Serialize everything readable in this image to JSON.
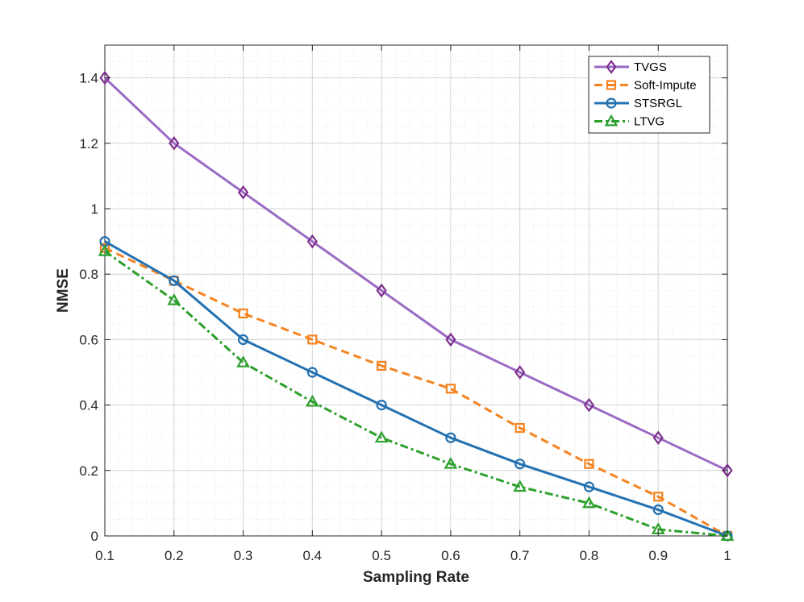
{
  "chart_data": {
    "type": "line",
    "title": "",
    "xlabel": "Sampling Rate",
    "ylabel": "NMSE",
    "x": [
      0.1,
      0.2,
      0.3,
      0.4,
      0.5,
      0.6,
      0.7,
      0.8,
      0.9,
      1
    ],
    "xlim": [
      0.1,
      1
    ],
    "ylim": [
      0,
      1.5
    ],
    "x_ticks": [
      "0.1",
      "0.2",
      "0.3",
      "0.4",
      "0.5",
      "0.6",
      "0.7",
      "0.8",
      "0.9",
      "1"
    ],
    "y_ticks": [
      "0",
      "0.2",
      "0.4",
      "0.6",
      "0.8",
      "1",
      "1.2",
      "1.4"
    ],
    "grid": true,
    "minor_grid": true,
    "legend_position": "top-right",
    "series": [
      {
        "name": "TVGS",
        "color": "#7E2F8E",
        "line_color": "#9B6BC4",
        "dash": "solid",
        "marker": "diamond",
        "values": [
          1.4,
          1.2,
          1.05,
          0.9,
          0.75,
          0.6,
          0.5,
          0.4,
          0.3,
          0.2
        ]
      },
      {
        "name": "Soft-Impute",
        "color": "#F5831F",
        "dash": "dashed",
        "marker": "square",
        "values": [
          0.88,
          0.78,
          0.68,
          0.6,
          0.52,
          0.45,
          0.33,
          0.22,
          0.12,
          0.0
        ]
      },
      {
        "name": "STSRGL",
        "color": "#2371B2",
        "dash": "solid",
        "marker": "circle",
        "values": [
          0.9,
          0.78,
          0.6,
          0.5,
          0.4,
          0.3,
          0.22,
          0.15,
          0.08,
          0.0
        ]
      },
      {
        "name": "LTVG",
        "color": "#2CA02C",
        "dash": "dashdot",
        "marker": "triangle",
        "values": [
          0.87,
          0.72,
          0.53,
          0.41,
          0.3,
          0.22,
          0.15,
          0.1,
          0.02,
          0.0
        ]
      }
    ]
  }
}
